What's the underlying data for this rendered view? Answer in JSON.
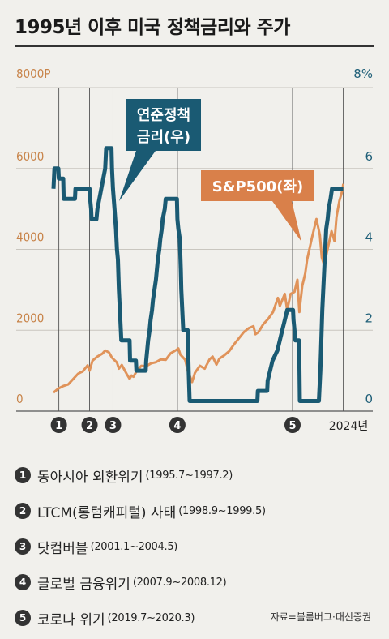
{
  "title": "1995년 이후 미국 정책금리와 주가",
  "source": "자료=블룸버그·대신증권",
  "chart_data": {
    "type": "line",
    "left_axis": {
      "unit_label": "8000P",
      "ticks": [
        "0",
        "2000",
        "4000",
        "6000"
      ],
      "range": [
        0,
        8000
      ]
    },
    "right_axis": {
      "unit_label": "8%",
      "ticks": [
        "0",
        "2",
        "4",
        "6"
      ],
      "range": [
        0,
        8
      ]
    },
    "x_range": [
      1995.0,
      2024.9
    ],
    "x_end_label": "2024년",
    "series": [
      {
        "name": "연준정책금리(우)",
        "axis": "right",
        "color": "#1a5a73",
        "points": [
          [
            1995.0,
            5.5
          ],
          [
            1995.1,
            6.0
          ],
          [
            1995.5,
            6.0
          ],
          [
            1995.55,
            5.75
          ],
          [
            1996.0,
            5.75
          ],
          [
            1996.05,
            5.25
          ],
          [
            1997.2,
            5.25
          ],
          [
            1997.25,
            5.5
          ],
          [
            1998.7,
            5.5
          ],
          [
            1998.75,
            5.25
          ],
          [
            1998.85,
            5.0
          ],
          [
            1998.9,
            4.75
          ],
          [
            1999.4,
            4.75
          ],
          [
            1999.5,
            5.0
          ],
          [
            1999.7,
            5.25
          ],
          [
            1999.9,
            5.5
          ],
          [
            2000.1,
            5.75
          ],
          [
            2000.3,
            6.0
          ],
          [
            2000.4,
            6.5
          ],
          [
            2000.95,
            6.5
          ],
          [
            2001.0,
            6.0
          ],
          [
            2001.1,
            5.5
          ],
          [
            2001.25,
            5.0
          ],
          [
            2001.4,
            4.5
          ],
          [
            2001.5,
            4.0
          ],
          [
            2001.6,
            3.75
          ],
          [
            2001.7,
            3.0
          ],
          [
            2001.8,
            2.5
          ],
          [
            2001.9,
            2.0
          ],
          [
            2001.95,
            1.75
          ],
          [
            2002.8,
            1.75
          ],
          [
            2002.85,
            1.25
          ],
          [
            2003.45,
            1.25
          ],
          [
            2003.5,
            1.0
          ],
          [
            2004.45,
            1.0
          ],
          [
            2004.5,
            1.25
          ],
          [
            2004.6,
            1.5
          ],
          [
            2004.7,
            1.75
          ],
          [
            2004.85,
            2.0
          ],
          [
            2004.95,
            2.25
          ],
          [
            2005.1,
            2.5
          ],
          [
            2005.2,
            2.75
          ],
          [
            2005.35,
            3.0
          ],
          [
            2005.5,
            3.25
          ],
          [
            2005.6,
            3.5
          ],
          [
            2005.7,
            3.75
          ],
          [
            2005.85,
            4.0
          ],
          [
            2005.95,
            4.25
          ],
          [
            2006.1,
            4.5
          ],
          [
            2006.2,
            4.75
          ],
          [
            2006.4,
            5.0
          ],
          [
            2006.5,
            5.25
          ],
          [
            2007.65,
            5.25
          ],
          [
            2007.7,
            4.75
          ],
          [
            2007.8,
            4.5
          ],
          [
            2007.95,
            4.25
          ],
          [
            2008.05,
            3.5
          ],
          [
            2008.1,
            3.0
          ],
          [
            2008.25,
            2.25
          ],
          [
            2008.3,
            2.0
          ],
          [
            2008.75,
            2.0
          ],
          [
            2008.8,
            1.5
          ],
          [
            2008.85,
            1.0
          ],
          [
            2008.95,
            0.25
          ],
          [
            2015.9,
            0.25
          ],
          [
            2015.95,
            0.5
          ],
          [
            2016.9,
            0.5
          ],
          [
            2016.95,
            0.75
          ],
          [
            2017.2,
            1.0
          ],
          [
            2017.45,
            1.25
          ],
          [
            2017.95,
            1.5
          ],
          [
            2018.2,
            1.75
          ],
          [
            2018.45,
            2.0
          ],
          [
            2018.7,
            2.25
          ],
          [
            2018.95,
            2.5
          ],
          [
            2019.55,
            2.5
          ],
          [
            2019.6,
            2.25
          ],
          [
            2019.7,
            2.0
          ],
          [
            2019.8,
            1.75
          ],
          [
            2020.15,
            1.75
          ],
          [
            2020.2,
            1.25
          ],
          [
            2020.25,
            0.25
          ],
          [
            2022.2,
            0.25
          ],
          [
            2022.25,
            0.5
          ],
          [
            2022.35,
            1.0
          ],
          [
            2022.45,
            1.75
          ],
          [
            2022.55,
            2.5
          ],
          [
            2022.7,
            3.25
          ],
          [
            2022.85,
            4.0
          ],
          [
            2022.95,
            4.5
          ],
          [
            2023.1,
            4.75
          ],
          [
            2023.2,
            5.0
          ],
          [
            2023.4,
            5.25
          ],
          [
            2023.55,
            5.5
          ],
          [
            2024.7,
            5.5
          ]
        ]
      },
      {
        "name": "S&P500(좌)",
        "axis": "left",
        "color": "#e0935a",
        "points": [
          [
            1995.0,
            460
          ],
          [
            1995.5,
            560
          ],
          [
            1996.0,
            620
          ],
          [
            1996.5,
            660
          ],
          [
            1997.0,
            790
          ],
          [
            1997.5,
            920
          ],
          [
            1997.8,
            960
          ],
          [
            1998.0,
            980
          ],
          [
            1998.5,
            1130
          ],
          [
            1998.7,
            1000
          ],
          [
            1999.0,
            1250
          ],
          [
            1999.5,
            1350
          ],
          [
            2000.0,
            1420
          ],
          [
            2000.3,
            1500
          ],
          [
            2000.7,
            1450
          ],
          [
            2001.0,
            1320
          ],
          [
            2001.5,
            1200
          ],
          [
            2001.7,
            1050
          ],
          [
            2002.0,
            1140
          ],
          [
            2002.5,
            920
          ],
          [
            2002.8,
            800
          ],
          [
            2003.0,
            880
          ],
          [
            2003.2,
            850
          ],
          [
            2003.5,
            980
          ],
          [
            2004.0,
            1120
          ],
          [
            2004.5,
            1110
          ],
          [
            2005.0,
            1180
          ],
          [
            2005.5,
            1210
          ],
          [
            2006.0,
            1280
          ],
          [
            2006.5,
            1270
          ],
          [
            2007.0,
            1430
          ],
          [
            2007.5,
            1500
          ],
          [
            2007.8,
            1550
          ],
          [
            2008.0,
            1400
          ],
          [
            2008.5,
            1270
          ],
          [
            2008.8,
            950
          ],
          [
            2009.0,
            850
          ],
          [
            2009.2,
            720
          ],
          [
            2009.5,
            950
          ],
          [
            2010.0,
            1120
          ],
          [
            2010.5,
            1050
          ],
          [
            2011.0,
            1280
          ],
          [
            2011.3,
            1350
          ],
          [
            2011.7,
            1150
          ],
          [
            2012.0,
            1300
          ],
          [
            2012.5,
            1380
          ],
          [
            2013.0,
            1480
          ],
          [
            2013.5,
            1650
          ],
          [
            2014.0,
            1800
          ],
          [
            2014.5,
            1950
          ],
          [
            2015.0,
            2050
          ],
          [
            2015.5,
            2100
          ],
          [
            2015.7,
            1900
          ],
          [
            2016.0,
            1950
          ],
          [
            2016.5,
            2150
          ],
          [
            2017.0,
            2280
          ],
          [
            2017.5,
            2450
          ],
          [
            2018.0,
            2800
          ],
          [
            2018.2,
            2600
          ],
          [
            2018.7,
            2900
          ],
          [
            2018.95,
            2500
          ],
          [
            2019.3,
            2900
          ],
          [
            2019.7,
            2950
          ],
          [
            2020.0,
            3250
          ],
          [
            2020.2,
            2450
          ],
          [
            2020.5,
            3100
          ],
          [
            2020.8,
            3400
          ],
          [
            2021.0,
            3750
          ],
          [
            2021.5,
            4300
          ],
          [
            2021.95,
            4750
          ],
          [
            2022.3,
            4350
          ],
          [
            2022.5,
            3800
          ],
          [
            2022.75,
            3600
          ],
          [
            2023.0,
            3900
          ],
          [
            2023.5,
            4450
          ],
          [
            2023.8,
            4200
          ],
          [
            2024.0,
            4800
          ],
          [
            2024.3,
            5200
          ],
          [
            2024.6,
            5450
          ],
          [
            2024.7,
            5620
          ]
        ]
      }
    ],
    "annotations": {
      "fed_label": [
        "연준정책",
        "금리(우)"
      ],
      "sp_label": "S&P500(좌)"
    },
    "events": [
      {
        "id": "1",
        "x": 1995.55,
        "label": "동아시아 외환위기",
        "period": "(1995.7~1997.2)"
      },
      {
        "id": "2",
        "x": 1998.7,
        "label": "LTCM(롱텀캐피털) 사태",
        "period": "(1998.9~1999.5)"
      },
      {
        "id": "3",
        "x": 2001.1,
        "label": "닷컴버블",
        "period": "(2001.1~2004.5)"
      },
      {
        "id": "4",
        "x": 2007.7,
        "label": "글로벌 금융위기",
        "period": "(2007.9~2008.12)"
      },
      {
        "id": "5",
        "x": 2019.5,
        "label": "코로나 위기",
        "period": "(2019.7~2020.3)"
      }
    ]
  }
}
